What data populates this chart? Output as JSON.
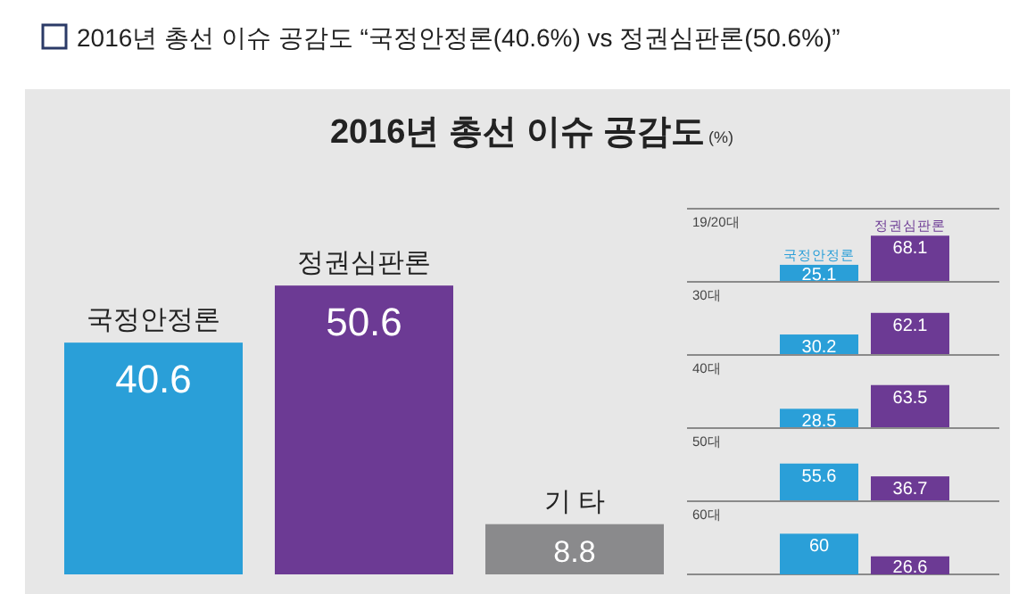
{
  "chart_data": [
    {
      "type": "bar",
      "title": "2016년 총선 이슈 공감도 “국정안정론(40.6%) vs 정권심판론(50.6%)”",
      "subtitle": "2016년 총선 이슈 공감도",
      "ylabel": "(%)",
      "categories": [
        "국정안정론",
        "정권심판론",
        "기 타"
      ],
      "values": [
        40.6,
        50.6,
        8.8
      ],
      "colors": [
        "#2a9fd8",
        "#6c3a94",
        "#8a8a8c"
      ],
      "data_labels": true
    },
    {
      "type": "bar",
      "title": "19/20대",
      "categories": [
        "국정안정론",
        "정권심판론"
      ],
      "values": [
        25.1,
        68.1
      ],
      "colors": [
        "#2a9fd8",
        "#6c3a94"
      ],
      "data_labels": true
    },
    {
      "type": "bar",
      "title": "30대",
      "categories": [
        null,
        null
      ],
      "values": [
        30.2,
        62.1
      ],
      "colors": [
        "#2a9fd8",
        "#6c3a94"
      ],
      "data_labels": true
    },
    {
      "type": "bar",
      "title": "40대",
      "categories": [
        null,
        null
      ],
      "values": [
        28.5,
        63.5
      ],
      "colors": [
        "#2a9fd8",
        "#6c3a94"
      ],
      "data_labels": true
    },
    {
      "type": "bar",
      "title": "50대",
      "categories": [
        null,
        null
      ],
      "values": [
        55.6,
        36.7
      ],
      "colors": [
        "#2a9fd8",
        "#6c3a94"
      ],
      "data_labels": true
    },
    {
      "type": "bar",
      "title": "60대",
      "categories": [
        null,
        null
      ],
      "values": [
        60,
        26.6
      ],
      "colors": [
        "#2a9fd8",
        "#6c3a94"
      ],
      "data_labels": true
    }
  ]
}
